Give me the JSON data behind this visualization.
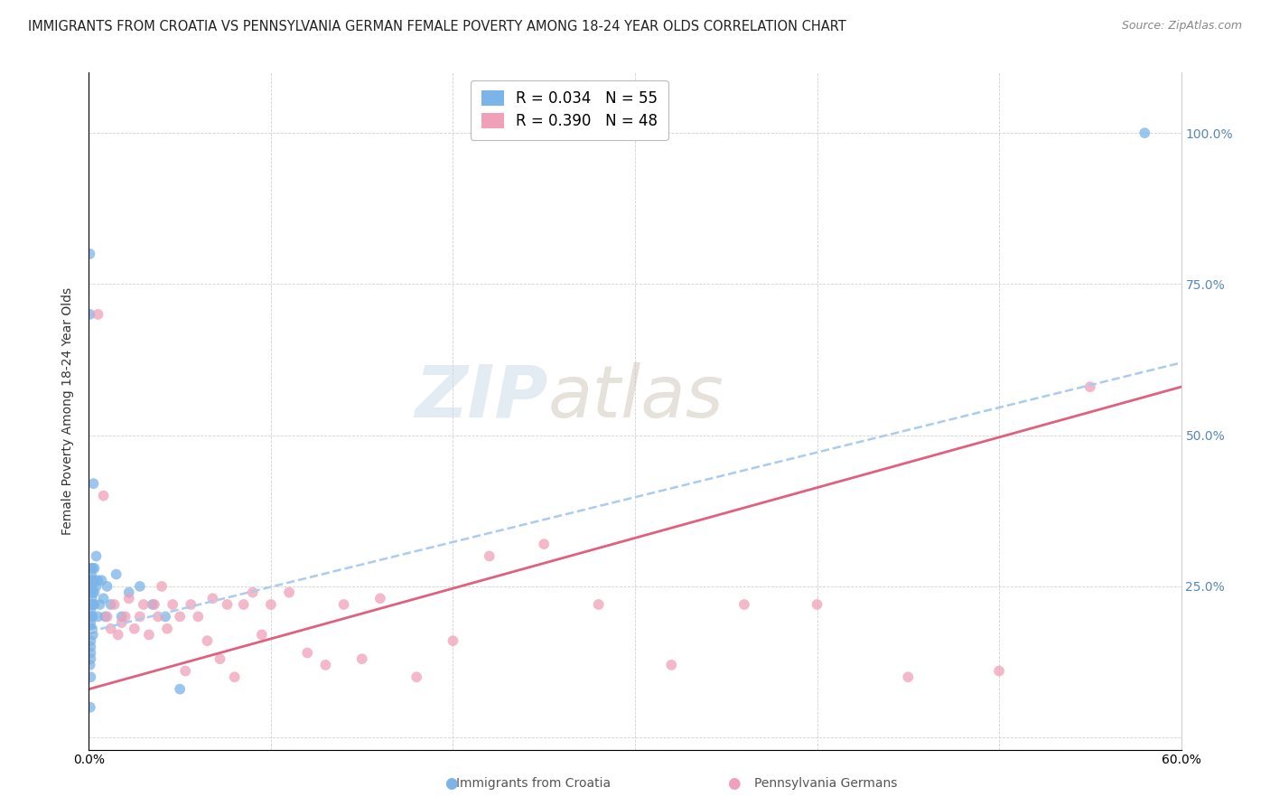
{
  "title": "IMMIGRANTS FROM CROATIA VS PENNSYLVANIA GERMAN FEMALE POVERTY AMONG 18-24 YEAR OLDS CORRELATION CHART",
  "source": "Source: ZipAtlas.com",
  "ylabel": "Female Poverty Among 18-24 Year Olds",
  "xlim": [
    0.0,
    0.6
  ],
  "ylim": [
    -0.02,
    1.1
  ],
  "ytick_positions": [
    0.0,
    0.25,
    0.5,
    0.75,
    1.0
  ],
  "right_ytick_labels": [
    "",
    "25.0%",
    "50.0%",
    "75.0%",
    "100.0%"
  ],
  "xtick_positions": [
    0.0,
    0.1,
    0.2,
    0.3,
    0.4,
    0.5,
    0.6
  ],
  "xtick_labels": [
    "0.0%",
    "",
    "",
    "",
    "",
    "",
    "60.0%"
  ],
  "croatia_R": 0.034,
  "croatia_N": 55,
  "pagerman_R": 0.39,
  "pagerman_N": 48,
  "watermark_text": "ZIP",
  "watermark_text2": "atlas",
  "title_fontsize": 10.5,
  "tick_fontsize": 10,
  "legend_fontsize": 12,
  "dot_size": 72,
  "croatia_color": "#7ab4e8",
  "pagerman_color": "#f0a0b8",
  "trendline_croatia_color": "#aaccee",
  "trendline_pagerman_color": "#e06080",
  "grid_color": "#cccccc",
  "right_tick_color": "#5588bb",
  "blue_line_x0": 0.0,
  "blue_line_y0": 0.175,
  "blue_line_x1": 0.6,
  "blue_line_y1": 0.62,
  "pink_line_x0": 0.0,
  "pink_line_y0": 0.08,
  "pink_line_x1": 0.6,
  "pink_line_y1": 0.58,
  "croatia_x": [
    0.0005,
    0.0005,
    0.0006,
    0.0007,
    0.0008,
    0.0009,
    0.001,
    0.001,
    0.001,
    0.001,
    0.001,
    0.001,
    0.001,
    0.001,
    0.001,
    0.001,
    0.001,
    0.001,
    0.001,
    0.001,
    0.0012,
    0.0013,
    0.0015,
    0.0015,
    0.0016,
    0.0018,
    0.002,
    0.002,
    0.002,
    0.002,
    0.002,
    0.0022,
    0.0025,
    0.003,
    0.003,
    0.003,
    0.003,
    0.004,
    0.004,
    0.005,
    0.005,
    0.006,
    0.007,
    0.008,
    0.009,
    0.01,
    0.012,
    0.015,
    0.018,
    0.022,
    0.028,
    0.035,
    0.042,
    0.05,
    0.58
  ],
  "croatia_y": [
    0.8,
    0.7,
    0.12,
    0.05,
    0.18,
    0.24,
    0.2,
    0.22,
    0.25,
    0.15,
    0.14,
    0.18,
    0.19,
    0.21,
    0.24,
    0.26,
    0.28,
    0.1,
    0.13,
    0.16,
    0.22,
    0.27,
    0.23,
    0.25,
    0.2,
    0.18,
    0.26,
    0.24,
    0.22,
    0.2,
    0.28,
    0.17,
    0.42,
    0.24,
    0.26,
    0.22,
    0.28,
    0.25,
    0.3,
    0.2,
    0.26,
    0.22,
    0.26,
    0.23,
    0.2,
    0.25,
    0.22,
    0.27,
    0.2,
    0.24,
    0.25,
    0.22,
    0.2,
    0.08,
    1.0
  ],
  "pagerman_x": [
    0.005,
    0.008,
    0.01,
    0.012,
    0.014,
    0.016,
    0.018,
    0.02,
    0.022,
    0.025,
    0.028,
    0.03,
    0.033,
    0.036,
    0.038,
    0.04,
    0.043,
    0.046,
    0.05,
    0.053,
    0.056,
    0.06,
    0.065,
    0.068,
    0.072,
    0.076,
    0.08,
    0.085,
    0.09,
    0.095,
    0.1,
    0.11,
    0.12,
    0.13,
    0.14,
    0.15,
    0.16,
    0.18,
    0.2,
    0.22,
    0.25,
    0.28,
    0.32,
    0.36,
    0.4,
    0.45,
    0.5,
    0.55
  ],
  "pagerman_y": [
    0.7,
    0.4,
    0.2,
    0.18,
    0.22,
    0.17,
    0.19,
    0.2,
    0.23,
    0.18,
    0.2,
    0.22,
    0.17,
    0.22,
    0.2,
    0.25,
    0.18,
    0.22,
    0.2,
    0.11,
    0.22,
    0.2,
    0.16,
    0.23,
    0.13,
    0.22,
    0.1,
    0.22,
    0.24,
    0.17,
    0.22,
    0.24,
    0.14,
    0.12,
    0.22,
    0.13,
    0.23,
    0.1,
    0.16,
    0.3,
    0.32,
    0.22,
    0.12,
    0.22,
    0.22,
    0.1,
    0.11,
    0.58
  ]
}
